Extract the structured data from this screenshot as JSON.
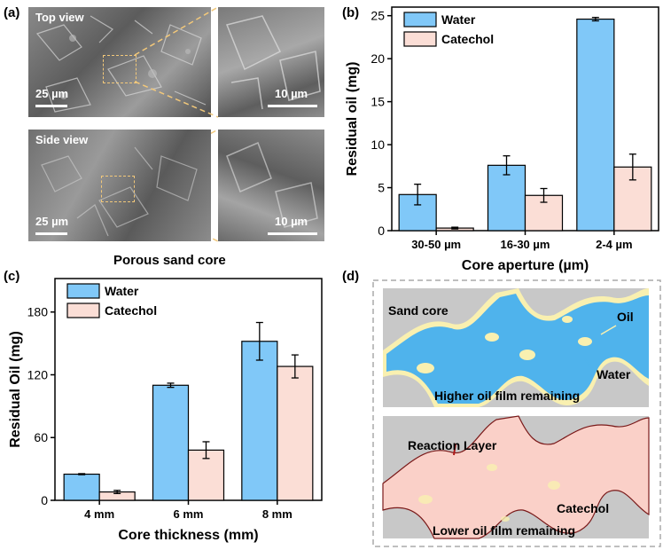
{
  "panels": {
    "a": "(a)",
    "b": "(b)",
    "c": "(c)",
    "d": "(d)"
  },
  "sem": {
    "top_view": "Top view",
    "side_view": "Side view",
    "scale_large": "25 µm",
    "scale_small": "10 µm",
    "caption": "Porous sand core"
  },
  "chart_data": [
    {
      "type": "bar",
      "categories": [
        "30-50 µm",
        "16-30 µm",
        "2-4 µm"
      ],
      "series": [
        {
          "name": "Water",
          "values": [
            4.2,
            7.6,
            24.6
          ],
          "errors": [
            1.2,
            1.1,
            0.2
          ]
        },
        {
          "name": "Catechol",
          "values": [
            0.3,
            4.1,
            7.4
          ],
          "errors": [
            0.1,
            0.8,
            1.5
          ]
        }
      ],
      "xlabel": "Core aperture (µm)",
      "ylabel": "Residual oil (mg)",
      "ylim": [
        0,
        26
      ],
      "yticks": [
        0,
        5,
        10,
        15,
        20,
        25
      ],
      "legend": "top-left",
      "colors": {
        "Water": "#80c8f8",
        "Catechol": "#fbded6"
      }
    },
    {
      "type": "bar",
      "categories": [
        "4 mm",
        "6 mm",
        "8 mm"
      ],
      "series": [
        {
          "name": "Water",
          "values": [
            25,
            110,
            152
          ],
          "errors": [
            0.5,
            2,
            18
          ]
        },
        {
          "name": "Catechol",
          "values": [
            8,
            48,
            128
          ],
          "errors": [
            1.5,
            8,
            11
          ]
        }
      ],
      "xlabel": "Core thickness (mm)",
      "ylabel": "Residual Oil (mg)",
      "ylim": [
        0,
        212
      ],
      "yticks": [
        0,
        60,
        120,
        180
      ],
      "legend": "top-left",
      "colors": {
        "Water": "#80c8f8",
        "Catechol": "#fbded6"
      }
    }
  ],
  "diagram": {
    "top": {
      "sand_core": "Sand core",
      "oil": "Oil",
      "water": "Water",
      "caption": "Higher oil film remaining"
    },
    "bottom": {
      "reaction_layer": "Reaction Layer",
      "catechol": "Catechol",
      "caption": "Lower oil film remaining"
    },
    "colors": {
      "sand": "#c8c8c8",
      "water": "#4fb3ec",
      "oil": "#fbf4b8",
      "catechol": "#fad0c8"
    }
  }
}
